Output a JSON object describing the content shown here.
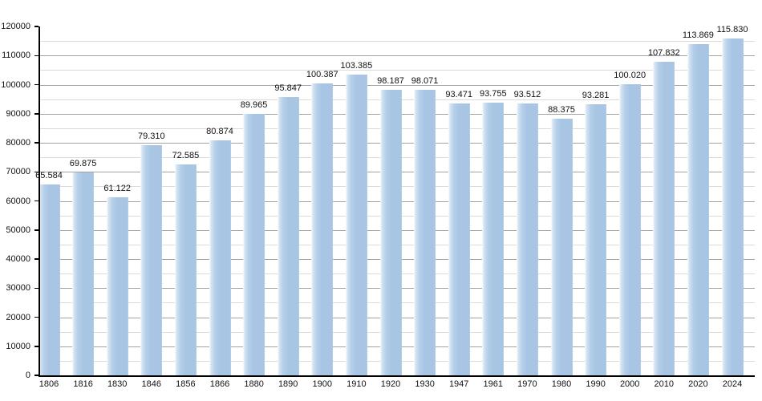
{
  "chart_data": {
    "type": "bar",
    "categories": [
      "1806",
      "1816",
      "1830",
      "1846",
      "1856",
      "1866",
      "1880",
      "1890",
      "1900",
      "1910",
      "1920",
      "1930",
      "1947",
      "1961",
      "1970",
      "1980",
      "1990",
      "2000",
      "2010",
      "2020",
      "2024"
    ],
    "values": [
      65584,
      69875,
      61122,
      79310,
      72585,
      80874,
      89965,
      95847,
      100387,
      103385,
      98187,
      98071,
      93471,
      93755,
      93512,
      88375,
      93281,
      100020,
      107832,
      113869,
      115830
    ],
    "value_labels": [
      "65.584",
      "69.875",
      "61.122",
      "79.310",
      "72.585",
      "80.874",
      "89.965",
      "95.847",
      "100.387",
      "103.385",
      "98.187",
      "98.071",
      "93.471",
      "93.755",
      "93.512",
      "88.375",
      "93.281",
      "100.020",
      "107.832",
      "113.869",
      "115.830"
    ],
    "ylim": [
      0,
      120000
    ],
    "ytick_step": 10000,
    "ytick_minor_step": 5000,
    "ytick_labels": [
      "0",
      "10000",
      "20000",
      "30000",
      "40000",
      "50000",
      "60000",
      "70000",
      "80000",
      "90000",
      "100000",
      "110000",
      "120000"
    ],
    "grid": true,
    "legend_position": "none",
    "colors": {
      "bar_main": "#a8c6e3",
      "bar_edge_light": "#d7e5f3",
      "grid_minor": "#dadada",
      "grid_major": "#a3a3a3",
      "axis": "#000000",
      "text": "#111111",
      "background": "#ffffff"
    }
  }
}
